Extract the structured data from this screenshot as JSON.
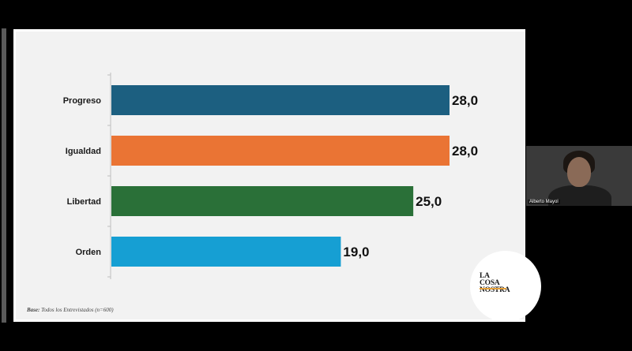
{
  "chart_data": {
    "type": "bar",
    "orientation": "horizontal",
    "categories": [
      "Progreso",
      "Igualdad",
      "Libertad",
      "Orden"
    ],
    "values": [
      28.0,
      28.0,
      25.0,
      19.0
    ],
    "value_labels": [
      "28,0",
      "28,0",
      "25,0",
      "19,0"
    ],
    "colors": [
      "#1c5f80",
      "#ea7434",
      "#2a7038",
      "#169fd3"
    ],
    "xlim": [
      0,
      28.0
    ],
    "grid": false,
    "legend": "none"
  },
  "footnote": {
    "bold": "Base:",
    "text": " Todos los Entrevistados (n=600)"
  },
  "logo": {
    "line1": "LA COSA",
    "line2": "NOSTRA"
  },
  "video": {
    "participant_name": "Alberto Mayol"
  }
}
